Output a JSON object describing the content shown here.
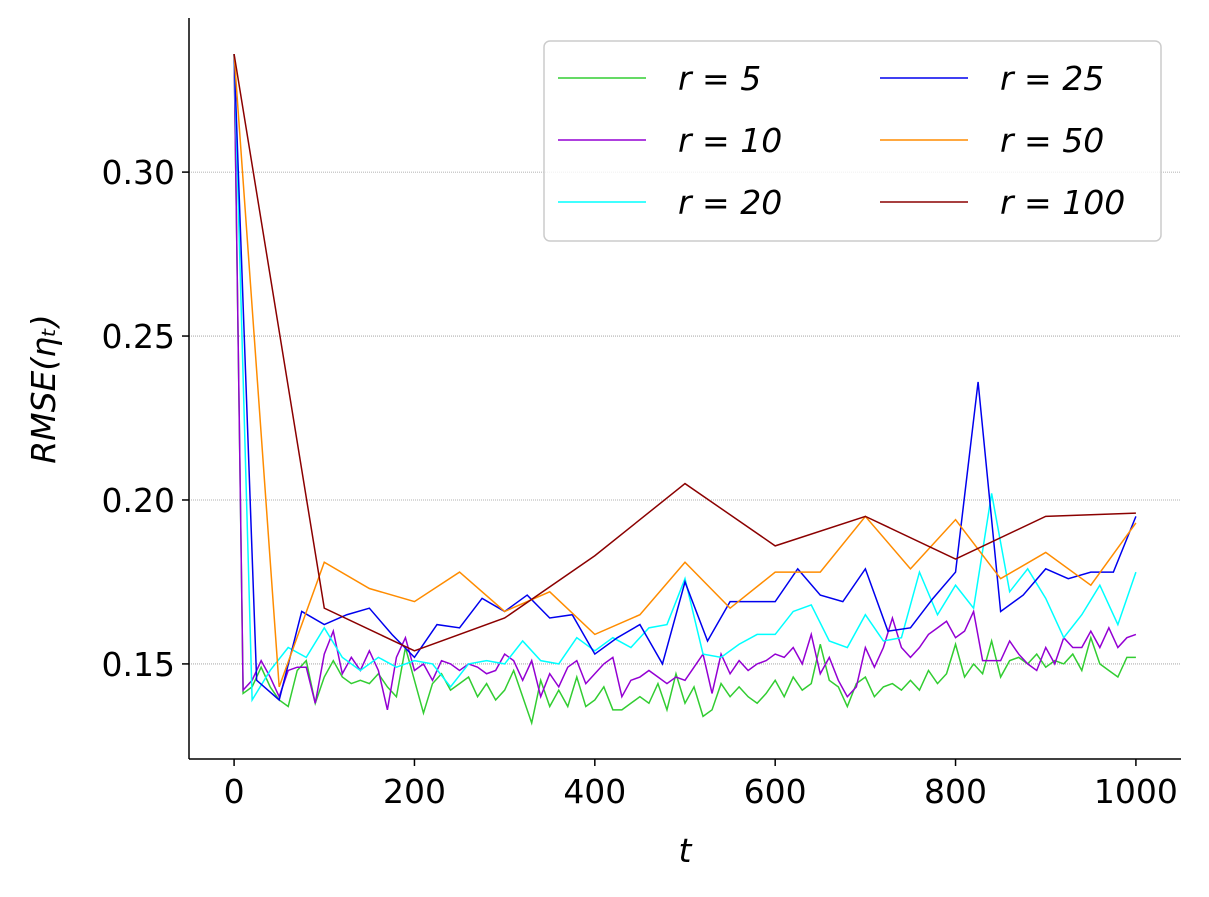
{
  "chart_data": {
    "type": "line",
    "xlabel": "t",
    "ylabel": "RMSE(ηₜ)",
    "xlim": [
      -50,
      1050
    ],
    "ylim": [
      0.121,
      0.347
    ],
    "xticks": [
      0,
      200,
      400,
      600,
      800,
      1000
    ],
    "yticks": [
      0.15,
      {
        "value": 0.2,
        "label": "0.20"
      },
      0.25,
      {
        "value": 0.3,
        "label": "0.30"
      }
    ],
    "grid": true,
    "legend": "upper right",
    "series": [
      {
        "name": "r = 5",
        "color": "#32cd32",
        "x": [
          0,
          10,
          20,
          30,
          40,
          50,
          60,
          70,
          80,
          90,
          100,
          110,
          120,
          130,
          140,
          150,
          160,
          170,
          180,
          190,
          200,
          210,
          220,
          230,
          240,
          250,
          260,
          270,
          280,
          290,
          300,
          310,
          320,
          330,
          340,
          350,
          360,
          370,
          380,
          390,
          400,
          410,
          420,
          430,
          440,
          450,
          460,
          470,
          480,
          490,
          500,
          510,
          520,
          530,
          540,
          550,
          560,
          570,
          580,
          590,
          600,
          610,
          620,
          630,
          640,
          650,
          660,
          670,
          680,
          690,
          700,
          710,
          720,
          730,
          740,
          750,
          760,
          770,
          780,
          790,
          800,
          810,
          820,
          830,
          840,
          850,
          860,
          870,
          880,
          890,
          900,
          910,
          920,
          930,
          940,
          950,
          960,
          970,
          980,
          990,
          1000
        ],
        "values": [
          0.336,
          0.141,
          0.143,
          0.149,
          0.143,
          0.139,
          0.137,
          0.148,
          0.151,
          0.138,
          0.146,
          0.151,
          0.146,
          0.144,
          0.145,
          0.144,
          0.147,
          0.143,
          0.14,
          0.155,
          0.145,
          0.135,
          0.144,
          0.147,
          0.142,
          0.144,
          0.146,
          0.14,
          0.144,
          0.139,
          0.142,
          0.148,
          0.14,
          0.132,
          0.145,
          0.137,
          0.142,
          0.137,
          0.146,
          0.137,
          0.139,
          0.143,
          0.136,
          0.136,
          0.138,
          0.14,
          0.138,
          0.144,
          0.136,
          0.147,
          0.138,
          0.143,
          0.134,
          0.136,
          0.144,
          0.14,
          0.143,
          0.14,
          0.138,
          0.141,
          0.145,
          0.14,
          0.146,
          0.142,
          0.144,
          0.156,
          0.145,
          0.143,
          0.137,
          0.144,
          0.146,
          0.14,
          0.143,
          0.144,
          0.142,
          0.145,
          0.142,
          0.148,
          0.144,
          0.147,
          0.156,
          0.146,
          0.15,
          0.147,
          0.157,
          0.146,
          0.151,
          0.152,
          0.15,
          0.153,
          0.149,
          0.151,
          0.15,
          0.153,
          0.148,
          0.158,
          0.15,
          0.148,
          0.146,
          0.152,
          0.152
        ]
      },
      {
        "name": "r = 10",
        "color": "#9400d3",
        "x": [
          0,
          10,
          20,
          30,
          40,
          50,
          60,
          70,
          80,
          90,
          100,
          110,
          120,
          130,
          140,
          150,
          160,
          170,
          180,
          190,
          200,
          210,
          220,
          230,
          240,
          250,
          260,
          270,
          280,
          290,
          300,
          310,
          320,
          330,
          340,
          350,
          360,
          370,
          380,
          390,
          400,
          410,
          420,
          430,
          440,
          450,
          460,
          470,
          480,
          490,
          500,
          510,
          520,
          530,
          540,
          550,
          560,
          570,
          580,
          590,
          600,
          610,
          620,
          630,
          640,
          650,
          660,
          670,
          680,
          690,
          700,
          710,
          720,
          730,
          740,
          750,
          760,
          770,
          780,
          790,
          800,
          810,
          820,
          830,
          840,
          850,
          860,
          870,
          880,
          890,
          900,
          910,
          920,
          930,
          940,
          950,
          960,
          970,
          980,
          990,
          1000
        ],
        "values": [
          0.336,
          0.142,
          0.145,
          0.151,
          0.146,
          0.14,
          0.148,
          0.149,
          0.149,
          0.138,
          0.153,
          0.16,
          0.147,
          0.152,
          0.148,
          0.154,
          0.148,
          0.136,
          0.152,
          0.158,
          0.148,
          0.15,
          0.145,
          0.151,
          0.15,
          0.148,
          0.15,
          0.149,
          0.147,
          0.148,
          0.153,
          0.151,
          0.145,
          0.151,
          0.14,
          0.147,
          0.143,
          0.149,
          0.151,
          0.144,
          0.147,
          0.15,
          0.152,
          0.14,
          0.145,
          0.146,
          0.148,
          0.146,
          0.144,
          0.146,
          0.145,
          0.149,
          0.153,
          0.141,
          0.153,
          0.147,
          0.151,
          0.148,
          0.15,
          0.151,
          0.153,
          0.152,
          0.155,
          0.15,
          0.159,
          0.147,
          0.152,
          0.145,
          0.14,
          0.143,
          0.155,
          0.149,
          0.155,
          0.164,
          0.155,
          0.152,
          0.155,
          0.159,
          0.161,
          0.163,
          0.158,
          0.16,
          0.166,
          0.151,
          0.151,
          0.151,
          0.157,
          0.153,
          0.15,
          0.148,
          0.155,
          0.15,
          0.158,
          0.155,
          0.155,
          0.16,
          0.155,
          0.161,
          0.155,
          0.158,
          0.159
        ]
      },
      {
        "name": "r = 20",
        "color": "#00ffff",
        "x": [
          0,
          20,
          40,
          60,
          80,
          100,
          120,
          140,
          160,
          180,
          200,
          220,
          240,
          260,
          280,
          300,
          320,
          340,
          360,
          380,
          400,
          420,
          440,
          460,
          480,
          500,
          520,
          540,
          560,
          580,
          600,
          620,
          640,
          660,
          680,
          700,
          720,
          740,
          760,
          780,
          800,
          820,
          840,
          860,
          880,
          900,
          920,
          940,
          960,
          980,
          1000
        ],
        "values": [
          0.336,
          0.139,
          0.148,
          0.155,
          0.152,
          0.161,
          0.152,
          0.148,
          0.152,
          0.149,
          0.151,
          0.15,
          0.143,
          0.15,
          0.151,
          0.15,
          0.157,
          0.151,
          0.15,
          0.158,
          0.154,
          0.158,
          0.155,
          0.161,
          0.162,
          0.176,
          0.153,
          0.152,
          0.156,
          0.159,
          0.159,
          0.166,
          0.168,
          0.157,
          0.155,
          0.165,
          0.157,
          0.158,
          0.178,
          0.165,
          0.174,
          0.167,
          0.202,
          0.172,
          0.179,
          0.17,
          0.158,
          0.165,
          0.174,
          0.162,
          0.178
        ]
      },
      {
        "name": "r = 25",
        "color": "#0000ee",
        "x": [
          0,
          25,
          50,
          75,
          100,
          125,
          150,
          175,
          200,
          225,
          250,
          275,
          300,
          325,
          350,
          375,
          400,
          425,
          450,
          475,
          500,
          525,
          550,
          575,
          600,
          625,
          650,
          675,
          700,
          725,
          750,
          775,
          800,
          825,
          850,
          875,
          900,
          925,
          950,
          975,
          1000
        ],
        "values": [
          0.336,
          0.145,
          0.139,
          0.166,
          0.162,
          0.165,
          0.167,
          0.159,
          0.152,
          0.162,
          0.161,
          0.17,
          0.166,
          0.171,
          0.164,
          0.165,
          0.153,
          0.158,
          0.162,
          0.15,
          0.175,
          0.157,
          0.169,
          0.169,
          0.169,
          0.179,
          0.171,
          0.169,
          0.179,
          0.16,
          0.161,
          0.17,
          0.178,
          0.236,
          0.166,
          0.171,
          0.179,
          0.176,
          0.178,
          0.178,
          0.195
        ]
      },
      {
        "name": "r = 50",
        "color": "#ff8c00",
        "x": [
          0,
          50,
          100,
          150,
          200,
          250,
          300,
          350,
          400,
          450,
          500,
          550,
          600,
          650,
          700,
          750,
          800,
          850,
          900,
          950,
          1000
        ],
        "values": [
          0.336,
          0.143,
          0.181,
          0.173,
          0.169,
          0.178,
          0.166,
          0.172,
          0.159,
          0.165,
          0.181,
          0.167,
          0.178,
          0.178,
          0.195,
          0.179,
          0.194,
          0.176,
          0.184,
          0.174,
          0.193
        ]
      },
      {
        "name": "r = 100",
        "color": "#8b0000",
        "x": [
          0,
          100,
          200,
          300,
          400,
          500,
          600,
          700,
          800,
          900,
          1000
        ],
        "values": [
          0.336,
          0.167,
          0.154,
          0.164,
          0.183,
          0.205,
          0.186,
          0.195,
          0.182,
          0.195,
          0.196
        ]
      }
    ]
  }
}
